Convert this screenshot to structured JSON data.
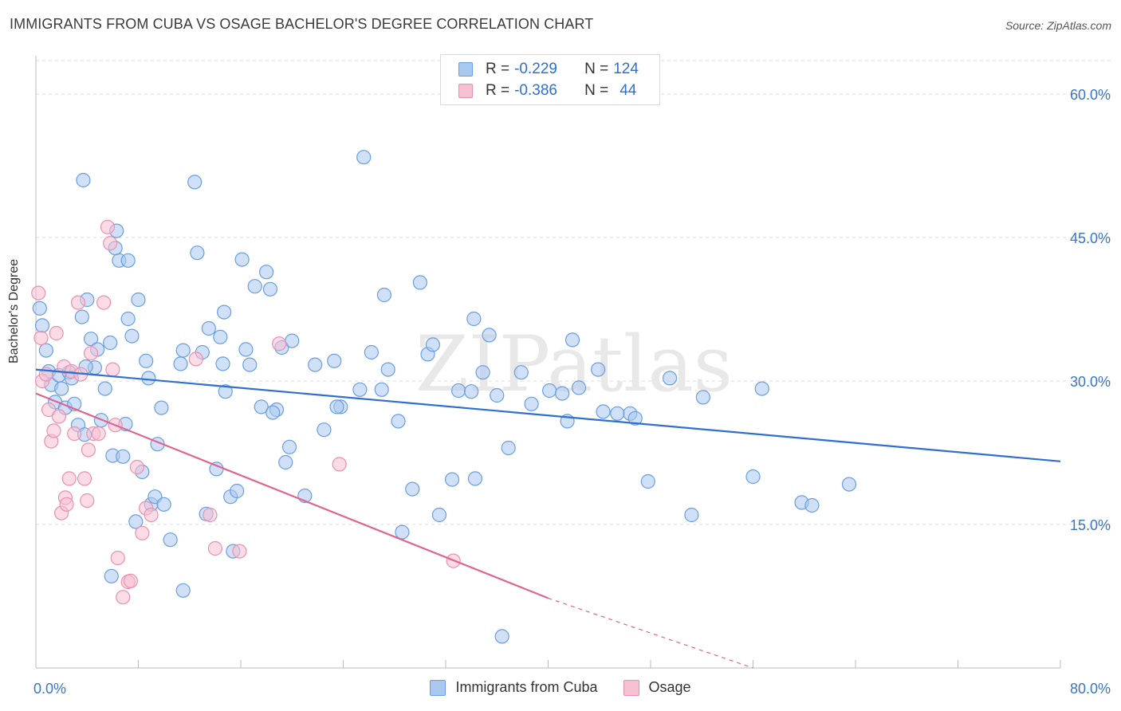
{
  "title": "IMMIGRANTS FROM CUBA VS OSAGE BACHELOR'S DEGREE CORRELATION CHART",
  "source": "Source: ZipAtlas.com",
  "watermark": "ZIPatlas",
  "legend_top": [
    {
      "r_label": "R = ",
      "r_value": "-0.229",
      "n_label": "N = ",
      "n_value": "124"
    },
    {
      "r_label": "R = ",
      "r_value": "-0.386",
      "n_label": "N = ",
      "n_value": "44"
    }
  ],
  "colors": {
    "blue_fill": "#a9c8f0",
    "blue_stroke": "#6a9ee0",
    "blue_line": "#2f6fd0",
    "pink_fill": "#f7bfd2",
    "pink_stroke": "#eb8fb0",
    "pink_line": "#e0648f",
    "tick_label": "#3a74c9",
    "grid": "#dddddd",
    "axis": "#bbbbbb"
  },
  "chart_data": {
    "type": "scatter",
    "xlabel": "",
    "ylabel": "Bachelor's Degree",
    "xlim": [
      0,
      80
    ],
    "ylim": [
      0,
      64
    ],
    "x_tick_labels": [
      "0.0%",
      "80.0%"
    ],
    "y_ticks": [
      15,
      30,
      45,
      60
    ],
    "y_tick_labels": [
      "15.0%",
      "30.0%",
      "45.0%",
      "60.0%"
    ],
    "grid": true,
    "legend_position": "top-center",
    "series": [
      {
        "name": "Immigrants from Cuba",
        "r": -0.229,
        "n": 124,
        "trend": {
          "x": [
            0,
            80
          ],
          "y": [
            31.2,
            21.6
          ],
          "dashed_from": null
        },
        "points": [
          [
            0.3,
            37.6
          ],
          [
            0.5,
            35.8
          ],
          [
            0.8,
            33.2
          ],
          [
            1.0,
            31.0
          ],
          [
            1.2,
            29.6
          ],
          [
            1.5,
            27.8
          ],
          [
            1.8,
            30.6
          ],
          [
            2.0,
            29.2
          ],
          [
            2.3,
            27.2
          ],
          [
            2.6,
            30.9
          ],
          [
            2.8,
            30.3
          ],
          [
            3.0,
            27.6
          ],
          [
            3.3,
            25.4
          ],
          [
            3.6,
            36.7
          ],
          [
            3.8,
            24.4
          ],
          [
            4.0,
            38.5
          ],
          [
            4.3,
            34.4
          ],
          [
            4.6,
            31.4
          ],
          [
            4.8,
            33.3
          ],
          [
            5.1,
            25.9
          ],
          [
            5.4,
            29.2
          ],
          [
            5.8,
            34.0
          ],
          [
            6.0,
            22.2
          ],
          [
            6.3,
            45.7
          ],
          [
            6.5,
            42.6
          ],
          [
            6.8,
            22.1
          ],
          [
            7.0,
            25.5
          ],
          [
            7.2,
            42.6
          ],
          [
            7.5,
            34.7
          ],
          [
            7.8,
            15.3
          ],
          [
            8.0,
            38.5
          ],
          [
            8.3,
            20.5
          ],
          [
            8.6,
            32.1
          ],
          [
            8.8,
            30.3
          ],
          [
            9.0,
            17.1
          ],
          [
            9.3,
            17.9
          ],
          [
            9.5,
            23.4
          ],
          [
            9.8,
            27.2
          ],
          [
            10.0,
            17.1
          ],
          [
            5.9,
            9.6
          ],
          [
            3.7,
            51.0
          ],
          [
            6.2,
            43.9
          ],
          [
            7.2,
            36.5
          ],
          [
            11.3,
            31.8
          ],
          [
            11.5,
            8.1
          ],
          [
            12.4,
            50.8
          ],
          [
            12.6,
            43.4
          ],
          [
            13.0,
            33.0
          ],
          [
            13.3,
            16.1
          ],
          [
            13.5,
            35.5
          ],
          [
            14.1,
            20.8
          ],
          [
            14.4,
            34.6
          ],
          [
            14.6,
            31.8
          ],
          [
            14.8,
            28.9
          ],
          [
            15.2,
            17.9
          ],
          [
            15.4,
            12.2
          ],
          [
            15.7,
            18.5
          ],
          [
            16.1,
            42.7
          ],
          [
            16.4,
            33.3
          ],
          [
            16.7,
            31.7
          ],
          [
            17.1,
            39.9
          ],
          [
            17.6,
            27.3
          ],
          [
            18.0,
            41.4
          ],
          [
            18.3,
            39.6
          ],
          [
            18.8,
            27.0
          ],
          [
            19.2,
            33.5
          ],
          [
            19.5,
            21.5
          ],
          [
            19.8,
            23.1
          ],
          [
            20.0,
            34.2
          ],
          [
            21.0,
            18.0
          ],
          [
            21.8,
            31.7
          ],
          [
            22.5,
            24.9
          ],
          [
            23.3,
            32.1
          ],
          [
            23.8,
            27.3
          ],
          [
            25.3,
            29.1
          ],
          [
            25.6,
            53.4
          ],
          [
            26.2,
            33.0
          ],
          [
            27.0,
            29.1
          ],
          [
            27.2,
            39.0
          ],
          [
            27.5,
            31.2
          ],
          [
            28.3,
            25.8
          ],
          [
            28.6,
            14.2
          ],
          [
            29.4,
            18.7
          ],
          [
            30.0,
            40.3
          ],
          [
            30.6,
            32.8
          ],
          [
            31.0,
            33.8
          ],
          [
            31.5,
            16.0
          ],
          [
            32.5,
            19.7
          ],
          [
            33.0,
            29.0
          ],
          [
            34.0,
            28.9
          ],
          [
            34.2,
            36.5
          ],
          [
            34.3,
            19.8
          ],
          [
            34.9,
            30.9
          ],
          [
            35.4,
            34.8
          ],
          [
            36.0,
            28.5
          ],
          [
            36.9,
            23.0
          ],
          [
            37.9,
            30.9
          ],
          [
            38.7,
            27.6
          ],
          [
            40.1,
            29.0
          ],
          [
            41.1,
            28.7
          ],
          [
            41.5,
            25.8
          ],
          [
            41.9,
            34.3
          ],
          [
            42.4,
            29.3
          ],
          [
            43.9,
            31.2
          ],
          [
            44.3,
            26.8
          ],
          [
            46.4,
            26.6
          ],
          [
            46.8,
            26.1
          ],
          [
            47.8,
            19.5
          ],
          [
            49.5,
            30.3
          ],
          [
            51.2,
            16.0
          ],
          [
            52.1,
            28.3
          ],
          [
            56.0,
            20.0
          ],
          [
            56.7,
            29.2
          ],
          [
            59.8,
            17.3
          ],
          [
            60.6,
            17.0
          ],
          [
            63.5,
            19.2
          ],
          [
            45.4,
            26.6
          ],
          [
            11.5,
            33.2
          ],
          [
            23.5,
            27.3
          ],
          [
            36.4,
            3.3
          ],
          [
            10.5,
            13.4
          ],
          [
            14.7,
            37.2
          ],
          [
            18.5,
            26.7
          ],
          [
            3.9,
            31.5
          ]
        ]
      },
      {
        "name": "Osage",
        "r": -0.386,
        "n": 44,
        "trend": {
          "x": [
            0,
            40
          ],
          "y": [
            28.7,
            7.3
          ],
          "dashed_to": [
            56,
            0
          ]
        },
        "points": [
          [
            0.2,
            39.2
          ],
          [
            0.4,
            34.5
          ],
          [
            0.5,
            30.0
          ],
          [
            0.8,
            30.7
          ],
          [
            1.0,
            27.0
          ],
          [
            1.2,
            23.7
          ],
          [
            1.4,
            24.8
          ],
          [
            1.6,
            35.0
          ],
          [
            1.8,
            26.3
          ],
          [
            2.0,
            16.2
          ],
          [
            2.2,
            31.5
          ],
          [
            2.3,
            17.8
          ],
          [
            2.4,
            17.1
          ],
          [
            2.6,
            19.8
          ],
          [
            2.8,
            31.0
          ],
          [
            3.0,
            24.5
          ],
          [
            3.3,
            38.2
          ],
          [
            3.5,
            30.7
          ],
          [
            3.8,
            19.8
          ],
          [
            4.0,
            17.5
          ],
          [
            4.1,
            22.8
          ],
          [
            4.3,
            32.9
          ],
          [
            4.5,
            24.5
          ],
          [
            4.9,
            24.5
          ],
          [
            5.3,
            38.2
          ],
          [
            5.6,
            46.1
          ],
          [
            5.8,
            44.4
          ],
          [
            6.0,
            31.2
          ],
          [
            6.2,
            25.4
          ],
          [
            6.4,
            11.5
          ],
          [
            6.8,
            7.4
          ],
          [
            7.2,
            9.0
          ],
          [
            7.4,
            9.1
          ],
          [
            7.9,
            21.0
          ],
          [
            8.3,
            14.1
          ],
          [
            8.6,
            16.7
          ],
          [
            9.0,
            16.0
          ],
          [
            12.5,
            32.3
          ],
          [
            13.6,
            16.0
          ],
          [
            14.0,
            12.5
          ],
          [
            15.9,
            12.2
          ],
          [
            19.0,
            33.9
          ],
          [
            23.7,
            21.3
          ],
          [
            32.6,
            11.2
          ]
        ]
      }
    ]
  }
}
